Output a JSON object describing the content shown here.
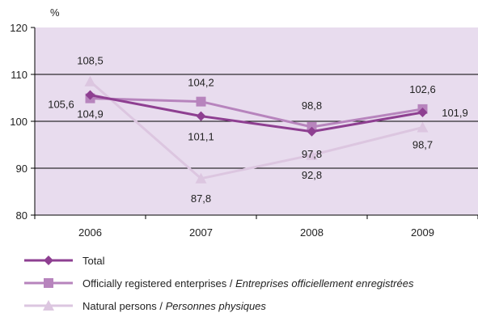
{
  "chart_data": {
    "type": "line",
    "unit_label": "%",
    "categories": [
      "2006",
      "2007",
      "2008",
      "2009"
    ],
    "ylim": [
      80,
      120
    ],
    "yticks": [
      80,
      90,
      100,
      110,
      120
    ],
    "grid": true,
    "series": [
      {
        "name": "Total",
        "name_italic": "",
        "values": [
          105.6,
          101.1,
          97.8,
          101.9
        ],
        "labels": [
          "105,6",
          "101,1",
          "97,8",
          "101,9"
        ],
        "color": "#8e3f91",
        "marker": "diamond"
      },
      {
        "name": "Officially registered enterprises / ",
        "name_italic": "Entreprises officiellement enregistrées",
        "values": [
          104.9,
          104.2,
          98.8,
          102.6
        ],
        "labels": [
          "104,9",
          "104,2",
          "98,8",
          "102,6"
        ],
        "color": "#b784bd",
        "marker": "square"
      },
      {
        "name": "Natural persons / ",
        "name_italic": "Personnes physiques",
        "values": [
          108.5,
          87.8,
          92.8,
          98.7
        ],
        "labels": [
          "108,5",
          "87,8",
          "92,8",
          "98,7"
        ],
        "color": "#dcc6e0",
        "marker": "triangle"
      }
    ]
  },
  "colors": {
    "plot_background": "#e8dcee",
    "axis": "#000000",
    "grid": "#000000"
  }
}
